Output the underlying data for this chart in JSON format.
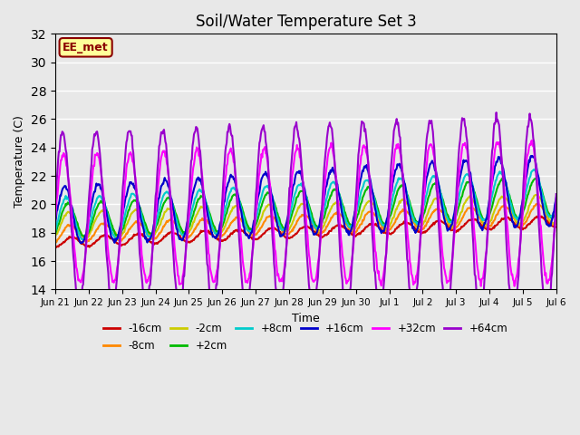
{
  "title": "Soil/Water Temperature Set 3",
  "xlabel": "Time",
  "ylabel": "Temperature (C)",
  "ylim": [
    14,
    32
  ],
  "yticks": [
    14,
    16,
    18,
    20,
    22,
    24,
    26,
    28,
    30,
    32
  ],
  "background_color": "#e8e8e8",
  "watermark": "EE_met",
  "series": {
    "-16cm": {
      "color": "#cc0000",
      "lw": 1.5
    },
    "-8cm": {
      "color": "#ff8800",
      "lw": 1.5
    },
    "-2cm": {
      "color": "#cccc00",
      "lw": 1.5
    },
    "+2cm": {
      "color": "#00bb00",
      "lw": 1.5
    },
    "+8cm": {
      "color": "#00cccc",
      "lw": 1.5
    },
    "+16cm": {
      "color": "#0000cc",
      "lw": 1.5
    },
    "+32cm": {
      "color": "#ff00ff",
      "lw": 1.5
    },
    "+64cm": {
      "color": "#9900cc",
      "lw": 1.5
    }
  },
  "n_days": 15,
  "tick_labels": [
    "Jun 21",
    "Jun 22",
    "Jun 23",
    "Jun 24",
    "Jun 25",
    "Jun 26",
    "Jun 27",
    "Jun 28",
    "Jun 29",
    "Jun 30",
    "Jul 1",
    "Jul 2",
    "Jul 3",
    "Jul 4",
    "Jul 5",
    "Jul 6"
  ]
}
